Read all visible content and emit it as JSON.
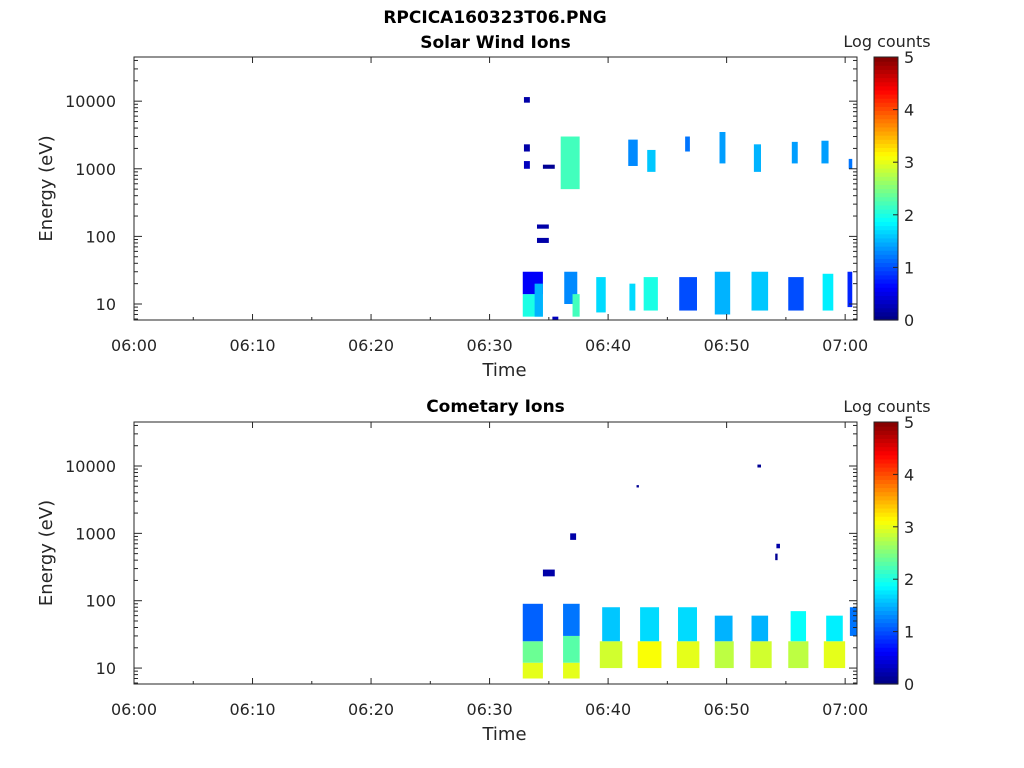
{
  "figure": {
    "title": "RPCICA160323T06.PNG"
  },
  "chart_data": [
    {
      "type": "heatmap",
      "title": "Solar Wind Ions",
      "xlabel": "Time",
      "ylabel": "Energy (eV)",
      "x_ticks": [
        "06:00",
        "06:10",
        "06:20",
        "06:30",
        "06:40",
        "06:50",
        "07:00"
      ],
      "x_tick_minutes": [
        0,
        10,
        20,
        30,
        40,
        50,
        60
      ],
      "xlim_minutes": [
        0,
        61
      ],
      "y_scale": "log",
      "ylim": [
        5.8,
        45000
      ],
      "y_ticks": [
        "10",
        "100",
        "1000",
        "10000"
      ],
      "y_tick_values": [
        10,
        100,
        1000,
        10000
      ],
      "colorbar": {
        "label": "Log counts",
        "min": 0,
        "max": 5,
        "ticks": [
          "0",
          "1",
          "2",
          "3",
          "4",
          "5"
        ]
      },
      "colormap": "jet",
      "grid": false,
      "cells": [
        [
          32.8,
          34.5,
          6.5,
          14,
          2.0
        ],
        [
          32.8,
          34.5,
          14,
          30,
          0.6
        ],
        [
          32.9,
          33.4,
          1000,
          1300,
          0.3
        ],
        [
          32.9,
          33.4,
          1800,
          2300,
          0.2
        ],
        [
          32.9,
          33.4,
          9500,
          11500,
          0.2
        ],
        [
          33.8,
          34.5,
          6.5,
          20,
          1.5
        ],
        [
          35.3,
          35.8,
          5.8,
          6.5,
          0.3
        ],
        [
          36.0,
          37.6,
          500,
          3000,
          2.2
        ],
        [
          36.3,
          37.4,
          10,
          30,
          1.3
        ],
        [
          37.0,
          37.6,
          6.5,
          14,
          2.2
        ],
        [
          39.0,
          39.8,
          7.5,
          25,
          1.7
        ],
        [
          41.8,
          42.3,
          8,
          20,
          1.7
        ],
        [
          41.7,
          42.5,
          1100,
          2700,
          1.3
        ],
        [
          43.0,
          44.2,
          8,
          25,
          2.0
        ],
        [
          43.3,
          44.0,
          900,
          1900,
          1.6
        ],
        [
          46.0,
          47.5,
          8,
          25,
          1.0
        ],
        [
          46.5,
          46.9,
          1800,
          3000,
          1.2
        ],
        [
          49.0,
          50.3,
          7,
          30,
          1.5
        ],
        [
          49.4,
          49.9,
          1200,
          3500,
          1.4
        ],
        [
          52.1,
          53.5,
          8,
          30,
          1.6
        ],
        [
          52.3,
          52.9,
          900,
          2300,
          1.5
        ],
        [
          55.2,
          56.5,
          8,
          25,
          1.0
        ],
        [
          55.5,
          56.0,
          1200,
          2500,
          1.4
        ],
        [
          58.1,
          59.0,
          8,
          28,
          1.8
        ],
        [
          58.0,
          58.6,
          1200,
          2600,
          1.4
        ],
        [
          60.2,
          60.6,
          9,
          30,
          0.8
        ],
        [
          60.3,
          60.6,
          1000,
          1400,
          1.2
        ],
        [
          34.0,
          35.0,
          80,
          95,
          0.2
        ],
        [
          34.0,
          35.0,
          130,
          150,
          0.2
        ],
        [
          34.5,
          35.5,
          1000,
          1150,
          0.1
        ]
      ],
      "series": []
    },
    {
      "type": "heatmap",
      "title": "Cometary Ions",
      "xlabel": "Time",
      "ylabel": "Energy (eV)",
      "x_ticks": [
        "06:00",
        "06:10",
        "06:20",
        "06:30",
        "06:40",
        "06:50",
        "07:00"
      ],
      "x_tick_minutes": [
        0,
        10,
        20,
        30,
        40,
        50,
        60
      ],
      "xlim_minutes": [
        0,
        61
      ],
      "y_scale": "log",
      "ylim": [
        5.8,
        45000
      ],
      "y_ticks": [
        "10",
        "100",
        "1000",
        "10000"
      ],
      "y_tick_values": [
        10,
        100,
        1000,
        10000
      ],
      "colorbar": {
        "label": "Log counts",
        "min": 0,
        "max": 5,
        "ticks": [
          "0",
          "1",
          "2",
          "3",
          "4",
          "5"
        ]
      },
      "colormap": "jet",
      "grid": false,
      "cells": [
        [
          32.8,
          34.5,
          7,
          12,
          3.0
        ],
        [
          32.8,
          34.5,
          12,
          25,
          2.4
        ],
        [
          32.8,
          34.5,
          25,
          90,
          1.1
        ],
        [
          36.2,
          37.6,
          7,
          12,
          3.0
        ],
        [
          36.2,
          37.6,
          12,
          30,
          2.3
        ],
        [
          36.2,
          37.6,
          30,
          90,
          1.2
        ],
        [
          36.8,
          37.3,
          800,
          1000,
          0.2
        ],
        [
          34.5,
          35.5,
          230,
          290,
          0.2
        ],
        [
          39.3,
          41.2,
          10,
          25,
          2.9
        ],
        [
          39.5,
          41.0,
          25,
          80,
          1.6
        ],
        [
          42.5,
          44.5,
          10,
          25,
          3.1
        ],
        [
          42.7,
          44.3,
          25,
          80,
          1.7
        ],
        [
          45.8,
          47.7,
          10,
          25,
          3.0
        ],
        [
          45.9,
          47.5,
          25,
          80,
          1.7
        ],
        [
          49.0,
          50.6,
          10,
          25,
          2.8
        ],
        [
          49.0,
          50.5,
          25,
          60,
          1.5
        ],
        [
          52.0,
          53.8,
          10,
          25,
          2.9
        ],
        [
          52.1,
          53.5,
          25,
          60,
          1.5
        ],
        [
          55.2,
          56.9,
          10,
          25,
          2.8
        ],
        [
          55.4,
          56.7,
          25,
          70,
          1.9
        ],
        [
          58.2,
          60.0,
          10,
          25,
          3.0
        ],
        [
          58.4,
          59.8,
          25,
          60,
          1.8
        ],
        [
          60.4,
          61.0,
          30,
          80,
          1.2
        ],
        [
          52.6,
          52.9,
          9500,
          10500,
          0.1
        ],
        [
          42.4,
          42.6,
          4800,
          5200,
          0.1
        ],
        [
          54.2,
          54.5,
          600,
          700,
          0.2
        ],
        [
          54.1,
          54.3,
          400,
          500,
          0.1
        ]
      ],
      "series": []
    }
  ]
}
